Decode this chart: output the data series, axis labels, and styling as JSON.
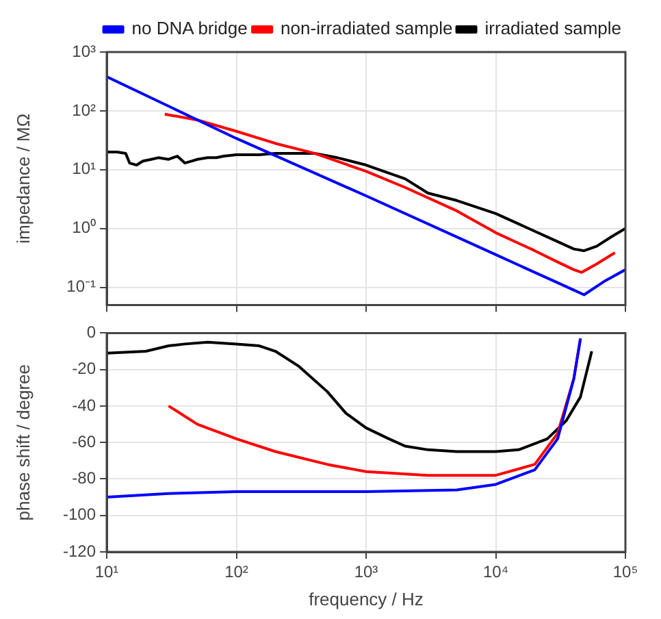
{
  "chart_data": [
    {
      "type": "line",
      "ylabel": "impedance / MΩ",
      "log": "xy",
      "grid": true,
      "legend": "top right",
      "marker": "none",
      "line_style": "solid",
      "tick_labels": "y",
      "xlim": [
        10,
        100000
      ],
      "xticks": [
        {
          "value": 10,
          "label": null
        },
        {
          "value": 100,
          "label": null
        },
        {
          "value": 1000,
          "label": null
        },
        {
          "value": 10000,
          "label": null
        },
        {
          "value": 100000,
          "label": null
        }
      ],
      "ylim": [
        0.05,
        1000
      ],
      "yticks": [
        {
          "value": 0.1,
          "label": "10⁻¹"
        },
        {
          "value": 1,
          "label": "10⁰"
        },
        {
          "value": 10,
          "label": "10¹"
        },
        {
          "value": 100,
          "label": "10²"
        },
        {
          "value": 1000,
          "label": "10³"
        }
      ],
      "series": [
        {
          "name": "irradiated sample",
          "color": "#000000",
          "x": [
            10,
            12,
            14,
            15,
            17,
            19,
            22,
            25,
            30,
            35,
            40,
            45,
            50,
            60,
            70,
            80,
            100,
            150,
            200,
            300,
            400,
            600,
            1000,
            2000,
            3000,
            5000,
            10000,
            20000,
            30000,
            40000,
            48000,
            60000,
            80000,
            100000
          ],
          "values": [
            20,
            20,
            19,
            13,
            12,
            14,
            15,
            16,
            15,
            17,
            13,
            14,
            15,
            16,
            16,
            17,
            18,
            18,
            19,
            19,
            19,
            16,
            12,
            7,
            4,
            3,
            1.8,
            0.9,
            0.6,
            0.45,
            0.42,
            0.5,
            0.75,
            1.0
          ]
        },
        {
          "name": "non-irradiated sample",
          "color": "#ff0000",
          "x": [
            28,
            50,
            100,
            200,
            400,
            1000,
            2000,
            5000,
            10000,
            20000,
            30000,
            40000,
            46000,
            60000,
            83000
          ],
          "values": [
            88,
            70,
            45,
            28,
            19,
            9.4,
            5,
            2,
            0.85,
            0.42,
            0.27,
            0.2,
            0.18,
            0.25,
            0.39
          ]
        },
        {
          "name": "no DNA bridge",
          "color": "#0000ff",
          "x": [
            10,
            100,
            1000,
            10000,
            30000,
            40000,
            48000,
            70000,
            100000
          ],
          "values": [
            380,
            34,
            3.6,
            0.36,
            0.12,
            0.09,
            0.075,
            0.13,
            0.2
          ]
        }
      ]
    },
    {
      "type": "line",
      "xlabel": "frequency / Hz",
      "ylabel": "phase shift / degree",
      "log": "x",
      "grid": true,
      "marker": "none",
      "line_style": "solid",
      "xlim": [
        10,
        100000
      ],
      "xticks": [
        {
          "value": 10,
          "label": "10¹"
        },
        {
          "value": 100,
          "label": "10²"
        },
        {
          "value": 1000,
          "label": "10³"
        },
        {
          "value": 10000,
          "label": "10⁴"
        },
        {
          "value": 100000,
          "label": "10⁵"
        }
      ],
      "ylim": [
        -120,
        0
      ],
      "yticks": [
        -120,
        -100,
        -80,
        -60,
        -40,
        -20,
        0
      ],
      "series": [
        {
          "color": "#000000",
          "x": [
            10,
            20,
            30,
            40,
            60,
            100,
            150,
            200,
            300,
            500,
            700,
            1000,
            1500,
            2000,
            3000,
            5000,
            10000,
            15000,
            25000,
            35000,
            45000,
            55000
          ],
          "values": [
            -11,
            -10,
            -7,
            -6,
            -5,
            -6,
            -7,
            -10,
            -18,
            -32,
            -44,
            -52,
            -58,
            -62,
            -64,
            -65,
            -65,
            -64,
            -58,
            -48,
            -35,
            -10
          ]
        },
        {
          "color": "#ff0000",
          "x": [
            30,
            50,
            100,
            200,
            500,
            1000,
            3000,
            10000,
            20000,
            30000,
            40000,
            45000
          ],
          "values": [
            -40,
            -50,
            -58,
            -65,
            -72,
            -76,
            -78,
            -78,
            -72,
            -55,
            -25,
            -3
          ]
        },
        {
          "color": "#0000ff",
          "x": [
            10,
            30,
            100,
            1000,
            5000,
            10000,
            20000,
            30000,
            40000,
            45000
          ],
          "values": [
            -90,
            -88,
            -87,
            -87,
            -86,
            -83,
            -75,
            -58,
            -25,
            -3
          ]
        }
      ]
    }
  ]
}
